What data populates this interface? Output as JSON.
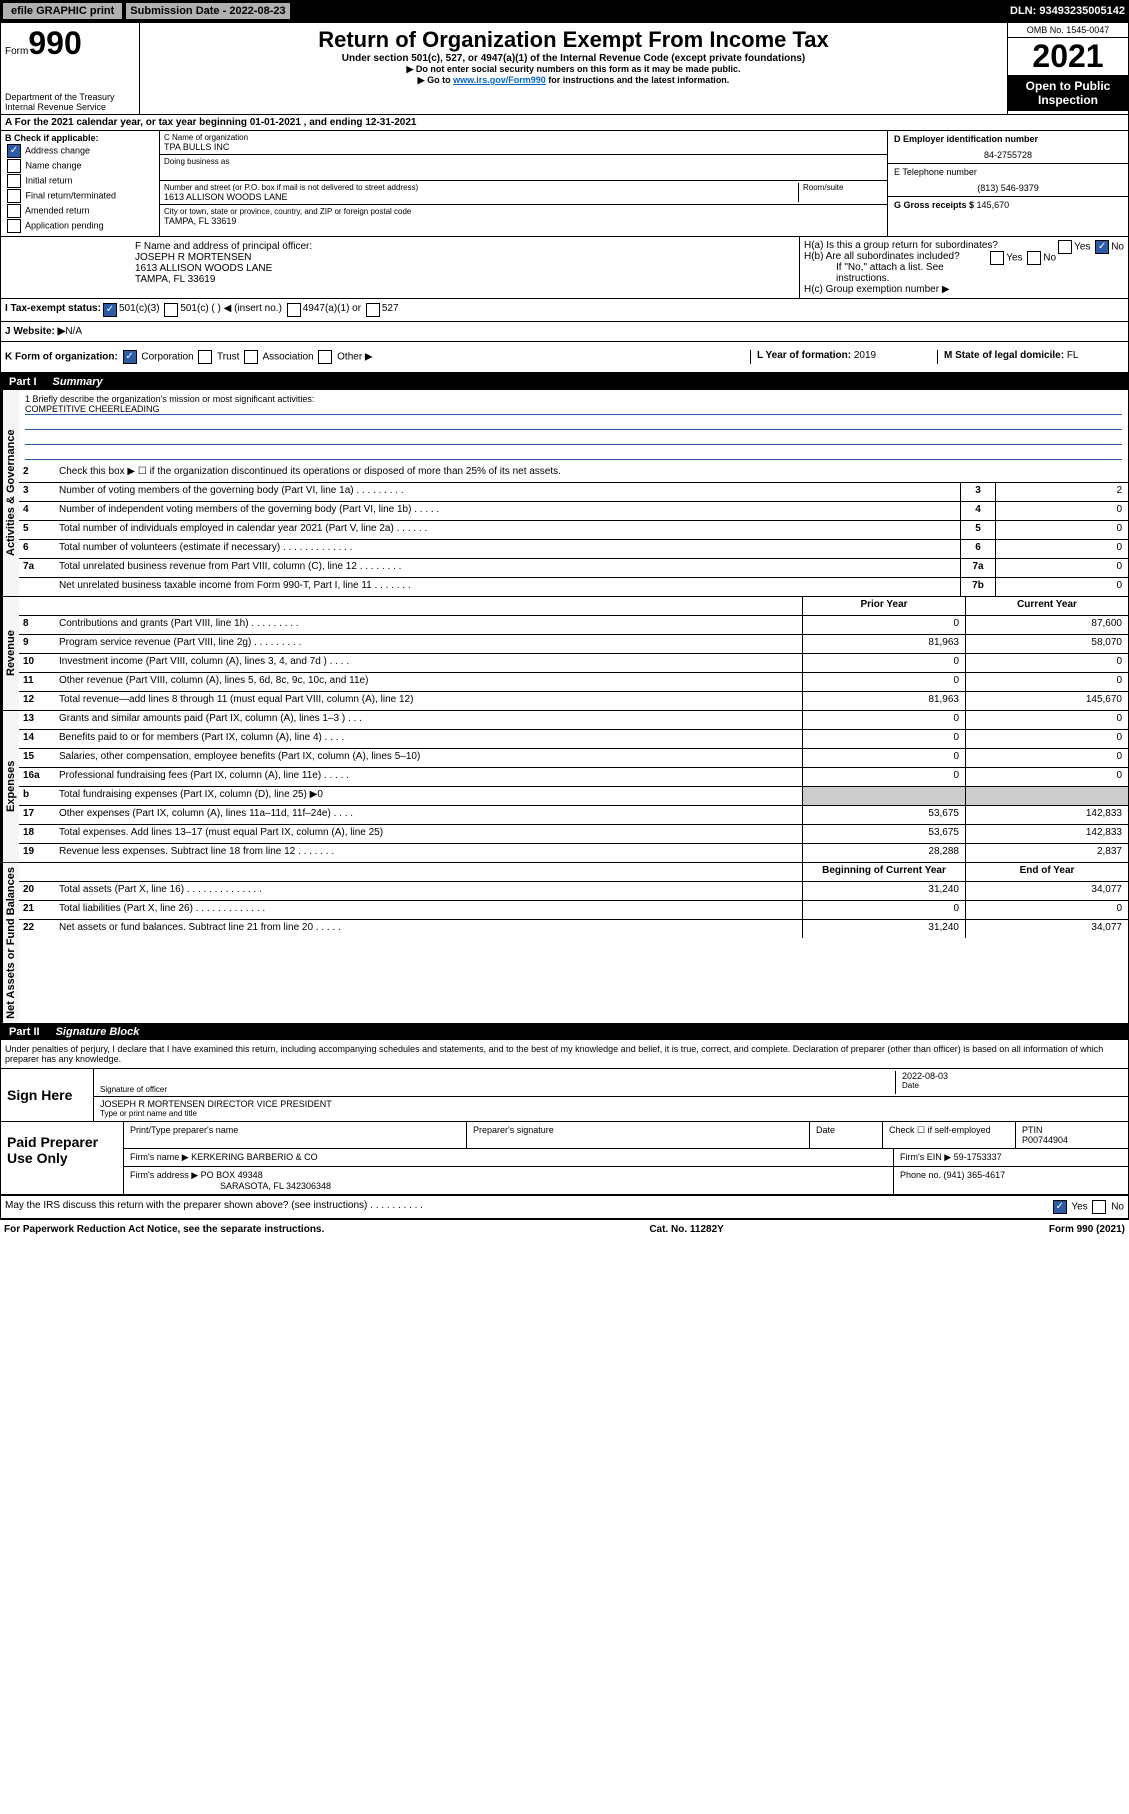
{
  "topbar": {
    "efile": "efile GRAPHIC print",
    "sub_label": "Submission Date - ",
    "sub_date": "2022-08-23",
    "dln_label": "DLN: ",
    "dln": "93493235005142"
  },
  "header": {
    "form_small": "Form",
    "form_num": "990",
    "title": "Return of Organization Exempt From Income Tax",
    "subtitle": "Under section 501(c), 527, or 4947(a)(1) of the Internal Revenue Code (except private foundations)",
    "instr1": "▶ Do not enter social security numbers on this form as it may be made public.",
    "instr2_a": "▶ Go to ",
    "instr2_link": "www.irs.gov/Form990",
    "instr2_b": " for instructions and the latest information.",
    "omb": "OMB No. 1545-0047",
    "year": "2021",
    "open_pub": "Open to Public Inspection",
    "dept": "Department of the Treasury Internal Revenue Service"
  },
  "lineA": "A For the 2021 calendar year, or tax year beginning 01-01-2021   , and ending 12-31-2021",
  "B": {
    "label": "B Check if applicable:",
    "opts": [
      "Address change",
      "Name change",
      "Initial return",
      "Final return/terminated",
      "Amended return",
      "Application pending"
    ]
  },
  "C": {
    "name_label": "C Name of organization",
    "name": "TPA BULLS INC",
    "dba_label": "Doing business as",
    "addr_label": "Number and street (or P.O. box if mail is not delivered to street address)",
    "room_label": "Room/suite",
    "addr": "1613 ALLISON WOODS LANE",
    "city_label": "City or town, state or province, country, and ZIP or foreign postal code",
    "city": "TAMPA, FL  33619"
  },
  "D": {
    "ein_label": "D Employer identification number",
    "ein": "84-2755728",
    "tel_label": "E Telephone number",
    "tel": "(813) 546-9379",
    "gross_label": "G Gross receipts $ ",
    "gross": "145,670"
  },
  "F": {
    "label": "F  Name and address of principal officer:",
    "name": "JOSEPH R MORTENSEN",
    "addr": "1613 ALLISON WOODS LANE",
    "city": "TAMPA, FL  33619"
  },
  "H": {
    "a": "H(a)  Is this a group return for subordinates?",
    "b": "H(b)  Are all subordinates included?",
    "b_note": "If \"No,\" attach a list. See instructions.",
    "c": "H(c)  Group exemption number ▶",
    "yes": "Yes",
    "no": "No"
  },
  "I": {
    "label": "I   Tax-exempt status:",
    "o1": "501(c)(3)",
    "o2": "501(c) (   ) ◀ (insert no.)",
    "o3": "4947(a)(1) or",
    "o4": "527"
  },
  "J": {
    "label": "J   Website: ▶ ",
    "val": "N/A"
  },
  "K": {
    "label": "K Form of organization:",
    "opts": [
      "Corporation",
      "Trust",
      "Association",
      "Other ▶"
    ]
  },
  "L": {
    "label": "L Year of formation: ",
    "val": "2019"
  },
  "M": {
    "label": "M State of legal domicile: ",
    "val": "FL"
  },
  "part1": {
    "pt": "Part I",
    "ti": "Summary"
  },
  "s1": {
    "label": "1  Briefly describe the organization's mission or most significant activities:",
    "mission": "COMPETITIVE CHEERLEADING"
  },
  "govlines": [
    {
      "n": "2",
      "d": "Check this box ▶ ☐  if the organization discontinued its operations or disposed of more than 25% of its net assets."
    },
    {
      "n": "3",
      "d": "Number of voting members of the governing body (Part VI, line 1a)   .    .    .    .    .    .    .    .    .",
      "bn": "3",
      "bv": "2"
    },
    {
      "n": "4",
      "d": "Number of independent voting members of the governing body (Part VI, line 1b)    .    .    .    .    .",
      "bn": "4",
      "bv": "0"
    },
    {
      "n": "5",
      "d": "Total number of individuals employed in calendar year 2021 (Part V, line 2a)   .    .    .    .    .    .",
      "bn": "5",
      "bv": "0"
    },
    {
      "n": "6",
      "d": "Total number of volunteers (estimate if necessary)    .    .    .    .    .    .    .    .    .    .    .    .    .",
      "bn": "6",
      "bv": "0"
    },
    {
      "n": "7a",
      "d": "Total unrelated business revenue from Part VIII, column (C), line 12   .    .    .    .    .    .    .    .",
      "bn": "7a",
      "bv": "0"
    },
    {
      "n": "",
      "d": "Net unrelated business taxable income from Form 990-T, Part I, line 11    .    .    .    .    .    .    .",
      "bn": "7b",
      "bv": "0"
    }
  ],
  "hdrcols": {
    "prior": "Prior Year",
    "curr": "Current Year"
  },
  "revlines": [
    {
      "n": "8",
      "d": "Contributions and grants (Part VIII, line 1h)    .    .    .    .    .    .    .    .    .",
      "p": "0",
      "c": "87,600"
    },
    {
      "n": "9",
      "d": "Program service revenue (Part VIII, line 2g)    .    .    .    .    .    .    .    .    .",
      "p": "81,963",
      "c": "58,070"
    },
    {
      "n": "10",
      "d": "Investment income (Part VIII, column (A), lines 3, 4, and 7d )    .    .    .    .",
      "p": "0",
      "c": "0"
    },
    {
      "n": "11",
      "d": "Other revenue (Part VIII, column (A), lines 5, 6d, 8c, 9c, 10c, and 11e)",
      "p": "0",
      "c": "0"
    },
    {
      "n": "12",
      "d": "Total revenue—add lines 8 through 11 (must equal Part VIII, column (A), line 12)",
      "p": "81,963",
      "c": "145,670"
    }
  ],
  "explines": [
    {
      "n": "13",
      "d": "Grants and similar amounts paid (Part IX, column (A), lines 1–3 )    .    .    .",
      "p": "0",
      "c": "0"
    },
    {
      "n": "14",
      "d": "Benefits paid to or for members (Part IX, column (A), line 4)    .    .    .    .",
      "p": "0",
      "c": "0"
    },
    {
      "n": "15",
      "d": "Salaries, other compensation, employee benefits (Part IX, column (A), lines 5–10)",
      "p": "0",
      "c": "0"
    },
    {
      "n": "16a",
      "d": "Professional fundraising fees (Part IX, column (A), line 11e)    .    .    .    .    .",
      "p": "0",
      "c": "0"
    },
    {
      "n": "b",
      "d": "Total fundraising expenses (Part IX, column (D), line 25) ▶0",
      "p": "",
      "c": "",
      "shade": true
    },
    {
      "n": "17",
      "d": "Other expenses (Part IX, column (A), lines 11a–11d, 11f–24e)    .    .    .    .",
      "p": "53,675",
      "c": "142,833"
    },
    {
      "n": "18",
      "d": "Total expenses. Add lines 13–17 (must equal Part IX, column (A), line 25)",
      "p": "53,675",
      "c": "142,833"
    },
    {
      "n": "19",
      "d": "Revenue less expenses. Subtract line 18 from line 12   .    .    .    .    .    .    .",
      "p": "28,288",
      "c": "2,837"
    }
  ],
  "hdrcols2": {
    "beg": "Beginning of Current Year",
    "end": "End of Year"
  },
  "netlines": [
    {
      "n": "20",
      "d": "Total assets (Part X, line 16)    .    .    .    .    .    .    .    .    .    .    .    .    .    .",
      "p": "31,240",
      "c": "34,077"
    },
    {
      "n": "21",
      "d": "Total liabilities (Part X, line 26)   .    .    .    .    .    .    .    .    .    .    .    .    .",
      "p": "0",
      "c": "0"
    },
    {
      "n": "22",
      "d": "Net assets or fund balances. Subtract line 21 from line 20    .    .    .    .    .",
      "p": "31,240",
      "c": "34,077"
    }
  ],
  "part2": {
    "pt": "Part II",
    "ti": "Signature Block"
  },
  "sig": {
    "decl": "Under penalties of perjury, I declare that I have examined this return, including accompanying schedules and statements, and to the best of my knowledge and belief, it is true, correct, and complete. Declaration of preparer (other than officer) is based on all information of which preparer has any knowledge.",
    "here": "Sign Here",
    "sig_of": "Signature of officer",
    "date_lbl": "Date",
    "date": "2022-08-03",
    "typed": "JOSEPH R MORTENSEN  DIRECTOR VICE PRESIDENT",
    "typed_lbl": "Type or print name and title"
  },
  "prep": {
    "label": "Paid Preparer Use Only",
    "h1": "Print/Type preparer's name",
    "h2": "Preparer's signature",
    "h3": "Date",
    "h4_a": "Check ☐   if self-employed",
    "h5": "PTIN",
    "ptin": "P00744904",
    "firm_lbl": "Firm's name      ▶ ",
    "firm": "KERKERING BARBERIO & CO",
    "ein_lbl": "Firm's EIN ▶ ",
    "ein": "59-1753337",
    "addr_lbl": "Firm's address ▶ ",
    "addr1": "PO BOX 49348",
    "addr2": "SARASOTA, FL  342306348",
    "phone_lbl": "Phone no. ",
    "phone": "(941) 365-4617"
  },
  "footer": {
    "discuss": "May the IRS discuss this return with the preparer shown above? (see instructions)    .    .    .    .    .    .    .    .    .    .",
    "yes": "Yes",
    "no": "No",
    "pra": "For Paperwork Reduction Act Notice, see the separate instructions.",
    "cat": "Cat. No. 11282Y",
    "form": "Form 990 (2021)"
  },
  "vert": {
    "gov": "Activities & Governance",
    "rev": "Revenue",
    "exp": "Expenses",
    "net": "Net Assets or Fund Balances"
  }
}
